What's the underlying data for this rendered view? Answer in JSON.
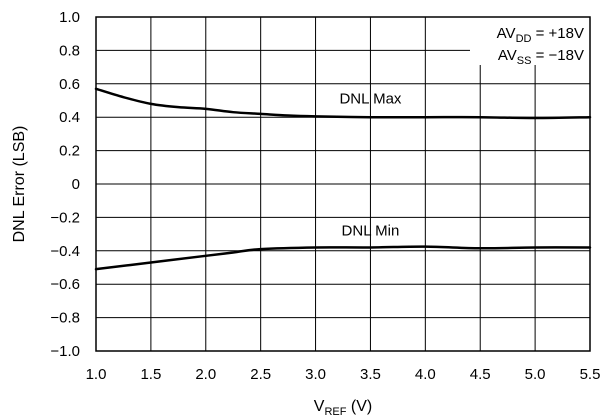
{
  "chart_data": {
    "type": "line",
    "title": "",
    "xlabel": {
      "main": "V",
      "sub": "REF",
      "suffix": " (V)"
    },
    "ylabel": "DNL Error (LSB)",
    "xlim": [
      1.0,
      5.5
    ],
    "ylim": [
      -1.0,
      1.0
    ],
    "grid": true,
    "x_ticks": [
      1.0,
      1.5,
      2.0,
      2.5,
      3.0,
      3.5,
      4.0,
      4.5,
      5.0,
      5.5
    ],
    "x_tick_labels": [
      "1.0",
      "1.5",
      "2.0",
      "2.5",
      "3.0",
      "3.5",
      "4.0",
      "4.5",
      "5.0",
      "5.5"
    ],
    "y_ticks": [
      1.0,
      0.8,
      0.6,
      0.4,
      0.2,
      0.0,
      -0.2,
      -0.4,
      -0.6,
      -0.8,
      -1.0
    ],
    "y_tick_labels": [
      "1.0",
      "0.8",
      "0.6",
      "0.4",
      "0.2",
      "0",
      "−0.2",
      "−0.4",
      "−0.6",
      "−0.8",
      "−1.0"
    ],
    "annotation": [
      {
        "main": "AV",
        "sub": "DD",
        "suffix": " = +18V"
      },
      {
        "main": "AV",
        "sub": "SS",
        "suffix": " = −18V"
      }
    ],
    "series": [
      {
        "name": "DNL Max",
        "color": "#000000",
        "x": [
          1.0,
          1.25,
          1.5,
          1.75,
          2.0,
          2.25,
          2.5,
          2.75,
          3.0,
          3.5,
          4.0,
          4.5,
          5.0,
          5.5
        ],
        "y": [
          0.57,
          0.52,
          0.48,
          0.46,
          0.45,
          0.43,
          0.42,
          0.41,
          0.405,
          0.4,
          0.4,
          0.4,
          0.395,
          0.4
        ]
      },
      {
        "name": "DNL Min",
        "color": "#000000",
        "x": [
          1.0,
          1.5,
          2.0,
          2.25,
          2.5,
          3.0,
          3.5,
          4.0,
          4.5,
          5.0,
          5.5
        ],
        "y": [
          -0.51,
          -0.47,
          -0.43,
          -0.41,
          -0.39,
          -0.38,
          -0.38,
          -0.375,
          -0.385,
          -0.38,
          -0.38
        ]
      }
    ]
  }
}
